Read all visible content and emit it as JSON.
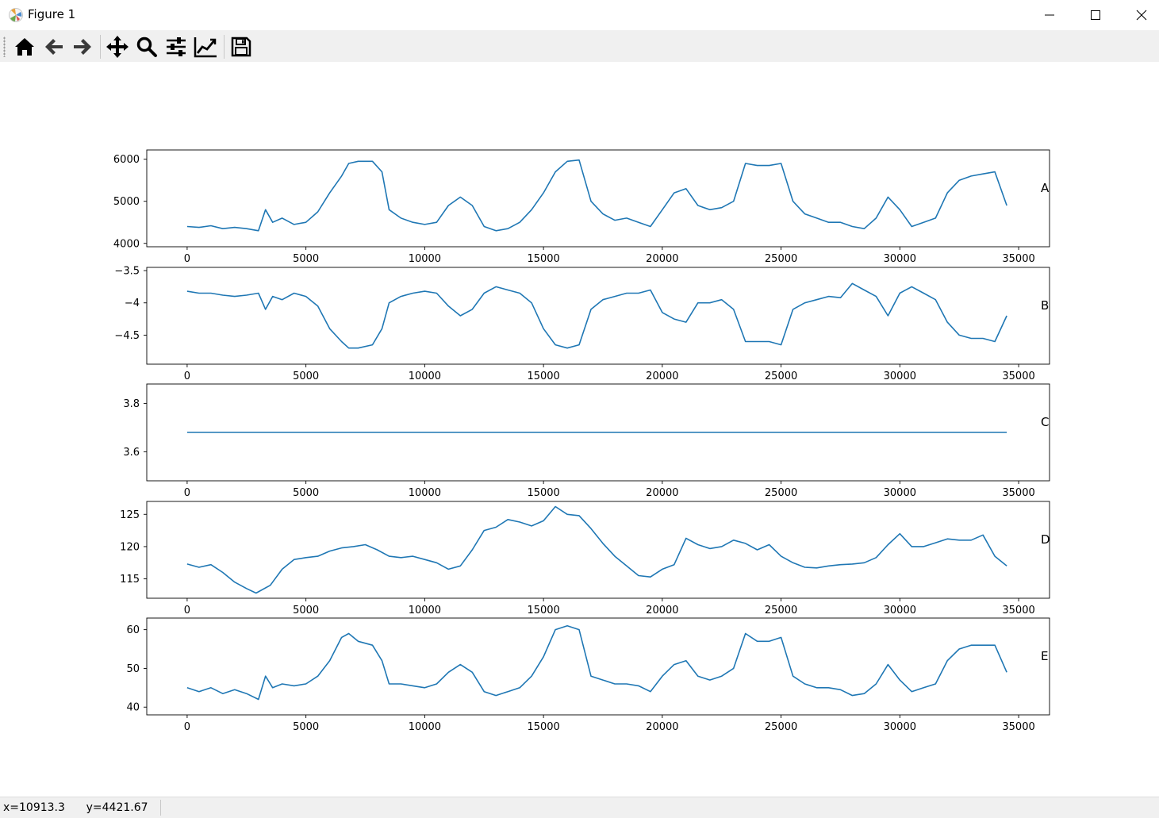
{
  "window": {
    "title": "Figure 1"
  },
  "toolbar": {
    "buttons": [
      {
        "name": "home",
        "icon": "home-icon"
      },
      {
        "name": "back",
        "icon": "arrow-left-icon"
      },
      {
        "name": "forward",
        "icon": "arrow-right-icon"
      },
      {
        "name": "pan",
        "icon": "move-icon"
      },
      {
        "name": "zoom",
        "icon": "magnifier-icon"
      },
      {
        "name": "subplots",
        "icon": "sliders-icon"
      },
      {
        "name": "edit-axes",
        "icon": "line-chart-icon"
      },
      {
        "name": "save",
        "icon": "floppy-icon"
      }
    ]
  },
  "status": {
    "x_readout": "x=10913.3",
    "y_readout": "y=4421.67"
  },
  "line_color": "#1f77b4",
  "chart_data": [
    {
      "type": "line",
      "label": "A",
      "xlim": [
        -1700,
        36300
      ],
      "ylim": [
        3920,
        6220
      ],
      "xticks": [
        0,
        5000,
        10000,
        15000,
        20000,
        25000,
        30000,
        35000
      ],
      "yticks": [
        4000,
        5000,
        6000
      ],
      "grid": false,
      "x": [
        0,
        500,
        1000,
        1500,
        2000,
        2500,
        3000,
        3300,
        3600,
        4000,
        4500,
        5000,
        5500,
        6000,
        6500,
        6800,
        7200,
        7800,
        8200,
        8500,
        9000,
        9500,
        10000,
        10500,
        11000,
        11500,
        12000,
        12500,
        13000,
        13500,
        14000,
        14500,
        15000,
        15500,
        16000,
        16500,
        17000,
        17500,
        18000,
        18500,
        19000,
        19500,
        20000,
        20500,
        21000,
        21500,
        22000,
        22500,
        23000,
        23500,
        24000,
        24500,
        25000,
        25500,
        26000,
        26500,
        27000,
        27500,
        28000,
        28500,
        29000,
        29500,
        30000,
        30500,
        31000,
        31500,
        32000,
        32500,
        33000,
        33500,
        34000,
        34500
      ],
      "y": [
        4400,
        4380,
        4420,
        4350,
        4380,
        4350,
        4300,
        4800,
        4500,
        4600,
        4450,
        4500,
        4750,
        5200,
        5600,
        5900,
        5950,
        5950,
        5700,
        4800,
        4600,
        4500,
        4450,
        4500,
        4900,
        5100,
        4900,
        4400,
        4300,
        4350,
        4500,
        4800,
        5200,
        5700,
        5950,
        5980,
        5000,
        4700,
        4550,
        4600,
        4500,
        4400,
        4800,
        5200,
        5300,
        4900,
        4800,
        4850,
        5000,
        5900,
        5850,
        5850,
        5900,
        5000,
        4700,
        4600,
        4500,
        4500,
        4400,
        4350,
        4600,
        5100,
        4800,
        4400,
        4500,
        4600,
        5200,
        5500,
        5600,
        5650,
        5700,
        4900
      ]
    },
    {
      "type": "line",
      "label": "B",
      "xlim": [
        -1700,
        36300
      ],
      "ylim": [
        -4.95,
        -3.45
      ],
      "xticks": [
        0,
        5000,
        10000,
        15000,
        20000,
        25000,
        30000,
        35000
      ],
      "yticks": [
        -3.5,
        -4.0,
        -4.5
      ],
      "grid": false,
      "x": [
        0,
        500,
        1000,
        1500,
        2000,
        2500,
        3000,
        3300,
        3600,
        4000,
        4500,
        5000,
        5500,
        6000,
        6500,
        6800,
        7200,
        7800,
        8200,
        8500,
        9000,
        9500,
        10000,
        10500,
        11000,
        11500,
        12000,
        12500,
        13000,
        13500,
        14000,
        14500,
        15000,
        15500,
        16000,
        16500,
        17000,
        17500,
        18000,
        18500,
        19000,
        19500,
        20000,
        20500,
        21000,
        21500,
        22000,
        22500,
        23000,
        23500,
        24000,
        24500,
        25000,
        25500,
        26000,
        26500,
        27000,
        27500,
        28000,
        28500,
        29000,
        29500,
        30000,
        30500,
        31000,
        31500,
        32000,
        32500,
        33000,
        33500,
        34000,
        34500
      ],
      "y": [
        -3.82,
        -3.85,
        -3.85,
        -3.88,
        -3.9,
        -3.88,
        -3.85,
        -4.1,
        -3.9,
        -3.95,
        -3.85,
        -3.9,
        -4.05,
        -4.4,
        -4.6,
        -4.7,
        -4.7,
        -4.65,
        -4.4,
        -4.0,
        -3.9,
        -3.85,
        -3.82,
        -3.85,
        -4.05,
        -4.2,
        -4.1,
        -3.85,
        -3.75,
        -3.8,
        -3.85,
        -4.0,
        -4.4,
        -4.65,
        -4.7,
        -4.65,
        -4.1,
        -3.95,
        -3.9,
        -3.85,
        -3.85,
        -3.8,
        -4.15,
        -4.25,
        -4.3,
        -4.0,
        -4.0,
        -3.95,
        -4.1,
        -4.6,
        -4.6,
        -4.6,
        -4.65,
        -4.1,
        -4.0,
        -3.95,
        -3.9,
        -3.92,
        -3.7,
        -3.8,
        -3.9,
        -4.2,
        -3.85,
        -3.75,
        -3.85,
        -3.95,
        -4.3,
        -4.5,
        -4.55,
        -4.55,
        -4.6,
        -4.2
      ]
    },
    {
      "type": "line",
      "label": "C",
      "xlim": [
        -1700,
        36300
      ],
      "ylim": [
        3.48,
        3.88
      ],
      "xticks": [
        0,
        5000,
        10000,
        15000,
        20000,
        25000,
        30000,
        35000
      ],
      "yticks": [
        3.6,
        3.8
      ],
      "grid": false,
      "x": [
        0,
        34500
      ],
      "y": [
        3.68,
        3.68
      ]
    },
    {
      "type": "line",
      "label": "D",
      "xlim": [
        -1700,
        36300
      ],
      "ylim": [
        112,
        127
      ],
      "xticks": [
        0,
        5000,
        10000,
        15000,
        20000,
        25000,
        30000,
        35000
      ],
      "yticks": [
        115,
        120,
        125
      ],
      "grid": false,
      "x": [
        0,
        500,
        1000,
        1500,
        2000,
        2500,
        2900,
        3500,
        4000,
        4500,
        5000,
        5500,
        6000,
        6500,
        7000,
        7500,
        8000,
        8500,
        9000,
        9500,
        10000,
        10500,
        11000,
        11500,
        12000,
        12500,
        13000,
        13500,
        14000,
        14500,
        15000,
        15500,
        16000,
        16500,
        17000,
        17500,
        18000,
        18500,
        19000,
        19500,
        20000,
        20500,
        21000,
        21500,
        22000,
        22500,
        23000,
        23500,
        24000,
        24500,
        25000,
        25500,
        26000,
        26500,
        27000,
        27500,
        28000,
        28500,
        29000,
        29500,
        30000,
        30500,
        31000,
        31500,
        32000,
        32500,
        33000,
        33500,
        34000,
        34500
      ],
      "y": [
        117.3,
        116.8,
        117.2,
        116.0,
        114.5,
        113.5,
        112.8,
        114.0,
        116.5,
        118.0,
        118.3,
        118.5,
        119.3,
        119.8,
        120.0,
        120.3,
        119.5,
        118.5,
        118.3,
        118.5,
        118.0,
        117.5,
        116.5,
        117.0,
        119.5,
        122.5,
        123.0,
        124.2,
        123.8,
        123.2,
        124.0,
        126.2,
        125.0,
        124.8,
        122.8,
        120.5,
        118.5,
        117.0,
        115.5,
        115.3,
        116.5,
        117.2,
        121.3,
        120.3,
        119.7,
        120.0,
        121.0,
        120.5,
        119.5,
        120.3,
        118.5,
        117.5,
        116.8,
        116.7,
        117.0,
        117.2,
        117.3,
        117.5,
        118.3,
        120.3,
        122.0,
        120.0,
        120.0,
        120.6,
        121.2,
        121.0,
        121.0,
        121.8,
        118.5,
        117.0
      ]
    },
    {
      "type": "line",
      "label": "E",
      "xlim": [
        -1700,
        36300
      ],
      "ylim": [
        38,
        63
      ],
      "xticks": [
        0,
        5000,
        10000,
        15000,
        20000,
        25000,
        30000,
        35000
      ],
      "yticks": [
        40,
        50,
        60
      ],
      "grid": false,
      "x": [
        0,
        500,
        1000,
        1500,
        2000,
        2500,
        3000,
        3300,
        3600,
        4000,
        4500,
        5000,
        5500,
        6000,
        6500,
        6800,
        7200,
        7800,
        8200,
        8500,
        9000,
        9500,
        10000,
        10500,
        11000,
        11500,
        12000,
        12500,
        13000,
        13500,
        14000,
        14500,
        15000,
        15500,
        16000,
        16500,
        17000,
        17500,
        18000,
        18500,
        19000,
        19500,
        20000,
        20500,
        21000,
        21500,
        22000,
        22500,
        23000,
        23500,
        24000,
        24500,
        25000,
        25500,
        26000,
        26500,
        27000,
        27500,
        28000,
        28500,
        29000,
        29500,
        30000,
        30500,
        31000,
        31500,
        32000,
        32500,
        33000,
        33500,
        34000,
        34500
      ],
      "y": [
        45,
        44,
        45,
        43.5,
        44.5,
        43.5,
        42,
        48,
        45,
        46,
        45.5,
        46,
        48,
        52,
        58,
        59,
        57,
        56,
        52,
        46,
        46,
        45.5,
        45,
        46,
        49,
        51,
        49,
        44,
        43,
        44,
        45,
        48,
        53,
        60,
        61,
        60,
        48,
        47,
        46,
        46,
        45.5,
        44,
        48,
        51,
        52,
        48,
        47,
        48,
        50,
        59,
        57,
        57,
        58,
        48,
        46,
        45,
        45,
        44.5,
        43,
        43.5,
        46,
        51,
        47,
        44,
        45,
        46,
        52,
        55,
        56,
        56,
        56,
        49
      ]
    }
  ]
}
